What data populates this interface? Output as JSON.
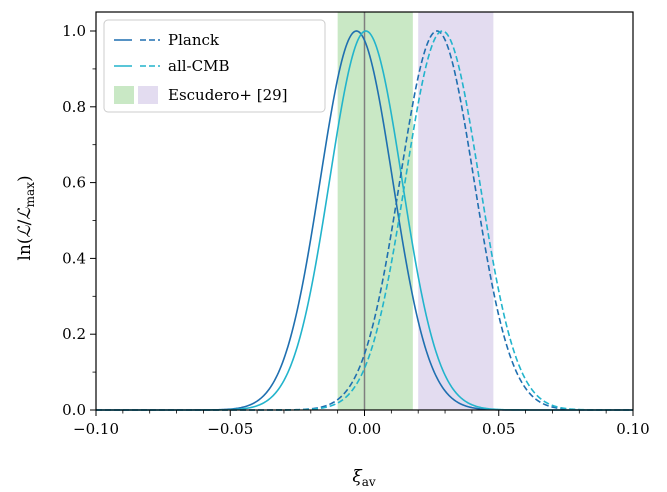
{
  "chart_data": {
    "type": "line",
    "xlabel": "ξ_av",
    "ylabel": "ln(ℒ/ℒ_max)",
    "xlim": [
      -0.1,
      0.1
    ],
    "ylim": [
      -0.02,
      1.05
    ],
    "x_ticks": [
      "−0.10",
      "−0.05",
      "0.00",
      "0.05",
      "0.10"
    ],
    "y_ticks": [
      "0.0",
      "0.2",
      "0.4",
      "0.6",
      "0.8",
      "1.0"
    ],
    "x_tick_values": [
      -0.1,
      -0.05,
      0.0,
      0.05,
      0.1
    ],
    "y_tick_values": [
      0.0,
      0.2,
      0.4,
      0.6,
      0.8,
      1.0
    ],
    "vertical_line": {
      "x": 0.0,
      "color": "#7f7f7f"
    },
    "bands": [
      {
        "name": "Escudero+ [29]",
        "x_range": [
          -0.01,
          0.018
        ],
        "color": "#c9e8c5"
      },
      {
        "name": "Escudero+ [29]",
        "x_range": [
          0.02,
          0.048
        ],
        "color": "#e3dcf0"
      }
    ],
    "series": [
      {
        "name": "Planck",
        "style": "solid",
        "color": "#1f6fb0",
        "peak": -0.003,
        "width": 0.0135
      },
      {
        "name": "all-CMB",
        "style": "solid",
        "color": "#22b4cc",
        "peak": 0.0005,
        "width": 0.0135
      },
      {
        "name": "Planck",
        "style": "dashed",
        "color": "#1f6fb0",
        "peak": 0.027,
        "width": 0.0138
      },
      {
        "name": "all-CMB",
        "style": "dashed",
        "color": "#22b4cc",
        "peak": 0.029,
        "width": 0.0138
      }
    ],
    "legend": {
      "position": "top-left",
      "entries": [
        {
          "label": "Planck",
          "color": "#1f6fb0"
        },
        {
          "label": "all-CMB",
          "color": "#22b4cc"
        },
        {
          "label": "Escudero+ [29]",
          "colors": [
            "#c9e8c5",
            "#e3dcf0"
          ]
        }
      ]
    }
  }
}
